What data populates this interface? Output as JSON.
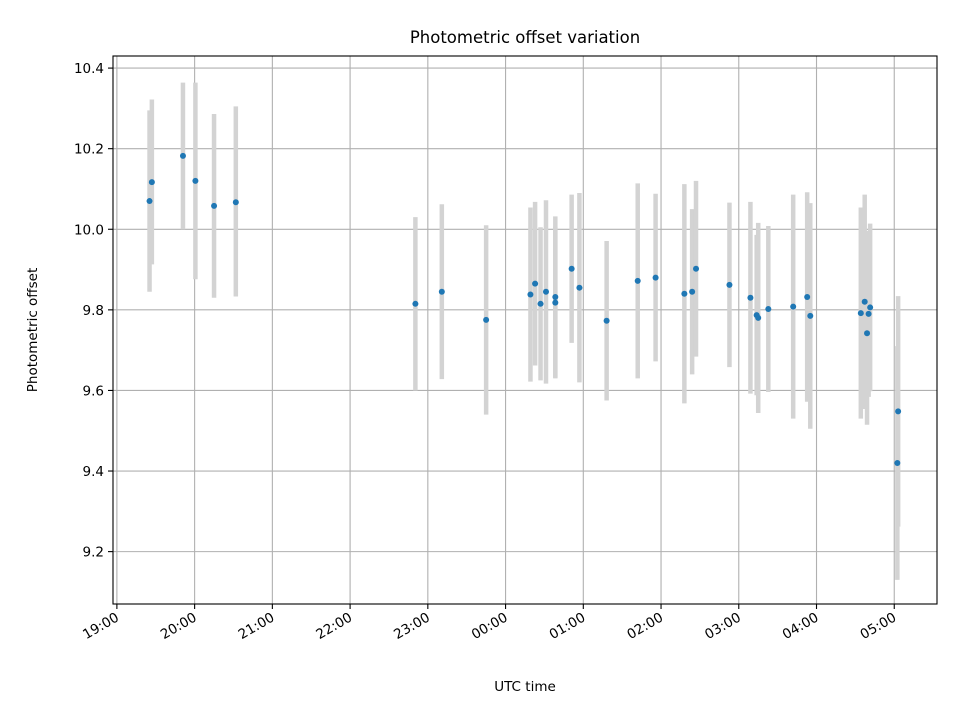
{
  "chart_data": {
    "type": "scatter",
    "title": "Photometric offset variation",
    "xlabel": "UTC time",
    "ylabel": "Photometric offset",
    "x_start": "19:00",
    "xlim": [
      -0.05,
      10.55
    ],
    "ylim": [
      9.07,
      10.43
    ],
    "x_ticks": [
      0,
      1,
      2,
      3,
      4,
      5,
      6,
      7,
      8,
      9,
      10
    ],
    "x_tick_labels": [
      "19:00",
      "20:00",
      "21:00",
      "22:00",
      "23:00",
      "00:00",
      "01:00",
      "02:00",
      "03:00",
      "04:00",
      "05:00"
    ],
    "y_ticks": [
      9.2,
      9.4,
      9.6,
      9.8,
      10.0,
      10.2,
      10.4
    ],
    "y_tick_labels": [
      "9.2",
      "9.4",
      "9.6",
      "9.8",
      "10.0",
      "10.2",
      "10.4"
    ],
    "grid": true,
    "marker_color": "#1f77b4",
    "errorbar_color": "#d3d3d3",
    "points": [
      {
        "x": 0.42,
        "y": 10.07,
        "ylo": 9.845,
        "yhi": 10.295
      },
      {
        "x": 0.45,
        "y": 10.117,
        "ylo": 9.913,
        "yhi": 10.322
      },
      {
        "x": 0.85,
        "y": 10.182,
        "ylo": 10.0,
        "yhi": 10.364
      },
      {
        "x": 1.01,
        "y": 10.12,
        "ylo": 9.876,
        "yhi": 10.364
      },
      {
        "x": 1.25,
        "y": 10.058,
        "ylo": 9.83,
        "yhi": 10.286
      },
      {
        "x": 1.53,
        "y": 10.067,
        "ylo": 9.833,
        "yhi": 10.305
      },
      {
        "x": 3.84,
        "y": 9.815,
        "ylo": 9.6,
        "yhi": 10.03
      },
      {
        "x": 4.18,
        "y": 9.845,
        "ylo": 9.628,
        "yhi": 10.062
      },
      {
        "x": 4.75,
        "y": 9.775,
        "ylo": 9.54,
        "yhi": 10.01
      },
      {
        "x": 5.32,
        "y": 9.838,
        "ylo": 9.622,
        "yhi": 10.054
      },
      {
        "x": 5.38,
        "y": 9.865,
        "ylo": 9.662,
        "yhi": 10.068
      },
      {
        "x": 5.45,
        "y": 9.815,
        "ylo": 9.625,
        "yhi": 10.005
      },
      {
        "x": 5.52,
        "y": 9.845,
        "ylo": 9.617,
        "yhi": 10.072
      },
      {
        "x": 5.64,
        "y": 9.832,
        "ylo": 9.632,
        "yhi": 10.032
      },
      {
        "x": 5.64,
        "y": 9.818,
        "ylo": 9.63,
        "yhi": 10.006
      },
      {
        "x": 5.85,
        "y": 9.902,
        "ylo": 9.718,
        "yhi": 10.086
      },
      {
        "x": 5.95,
        "y": 9.855,
        "ylo": 9.62,
        "yhi": 10.09
      },
      {
        "x": 6.3,
        "y": 9.773,
        "ylo": 9.575,
        "yhi": 9.971
      },
      {
        "x": 6.7,
        "y": 9.872,
        "ylo": 9.63,
        "yhi": 10.114
      },
      {
        "x": 6.93,
        "y": 9.88,
        "ylo": 9.672,
        "yhi": 10.088
      },
      {
        "x": 7.3,
        "y": 9.84,
        "ylo": 9.568,
        "yhi": 10.112
      },
      {
        "x": 7.4,
        "y": 9.845,
        "ylo": 9.64,
        "yhi": 10.05
      },
      {
        "x": 7.45,
        "y": 9.902,
        "ylo": 9.684,
        "yhi": 10.12
      },
      {
        "x": 7.88,
        "y": 9.862,
        "ylo": 9.658,
        "yhi": 10.066
      },
      {
        "x": 8.15,
        "y": 9.83,
        "ylo": 9.592,
        "yhi": 10.068
      },
      {
        "x": 8.23,
        "y": 9.787,
        "ylo": 9.588,
        "yhi": 9.986
      },
      {
        "x": 8.25,
        "y": 9.78,
        "ylo": 9.544,
        "yhi": 10.016
      },
      {
        "x": 8.38,
        "y": 9.802,
        "ylo": 9.596,
        "yhi": 10.008
      },
      {
        "x": 8.7,
        "y": 9.808,
        "ylo": 9.53,
        "yhi": 10.086
      },
      {
        "x": 8.88,
        "y": 9.832,
        "ylo": 9.572,
        "yhi": 10.092
      },
      {
        "x": 8.92,
        "y": 9.785,
        "ylo": 9.505,
        "yhi": 10.065
      },
      {
        "x": 9.57,
        "y": 9.792,
        "ylo": 9.53,
        "yhi": 10.054
      },
      {
        "x": 9.62,
        "y": 9.82,
        "ylo": 9.554,
        "yhi": 10.086
      },
      {
        "x": 9.65,
        "y": 9.742,
        "ylo": 9.515,
        "yhi": 9.969
      },
      {
        "x": 9.67,
        "y": 9.79,
        "ylo": 9.584,
        "yhi": 9.996
      },
      {
        "x": 9.69,
        "y": 9.806,
        "ylo": 9.598,
        "yhi": 10.014
      },
      {
        "x": 10.05,
        "y": 9.548,
        "ylo": 9.262,
        "yhi": 9.834
      },
      {
        "x": 10.04,
        "y": 9.42,
        "ylo": 9.13,
        "yhi": 9.71
      }
    ]
  }
}
